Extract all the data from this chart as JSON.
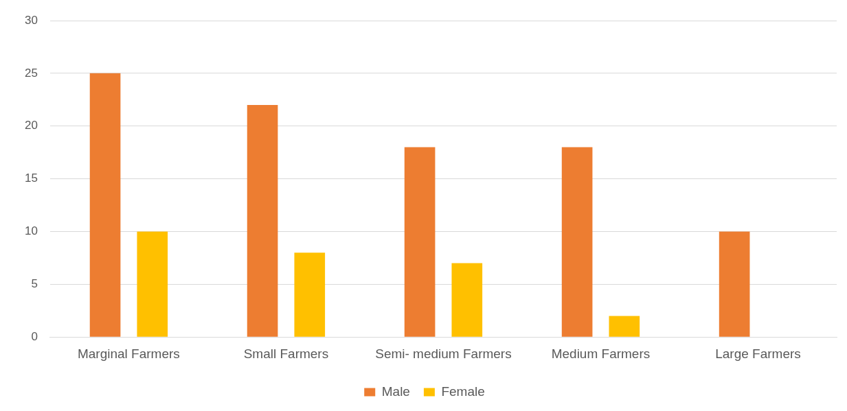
{
  "chart_data": {
    "type": "bar",
    "categories": [
      "Marginal Farmers",
      "Small Farmers",
      "Semi- medium Farmers",
      "Medium Farmers",
      "Large Farmers"
    ],
    "series": [
      {
        "name": "Male",
        "color": "#ed7d31",
        "values": [
          25,
          22,
          18,
          18,
          10
        ]
      },
      {
        "name": "Female",
        "color": "#ffc000",
        "values": [
          10,
          8,
          7,
          2,
          0
        ]
      }
    ],
    "ylim": [
      0,
      30
    ],
    "yticks": [
      0,
      5,
      10,
      15,
      20,
      25,
      30
    ],
    "grid": "y",
    "legend": "bottom"
  }
}
